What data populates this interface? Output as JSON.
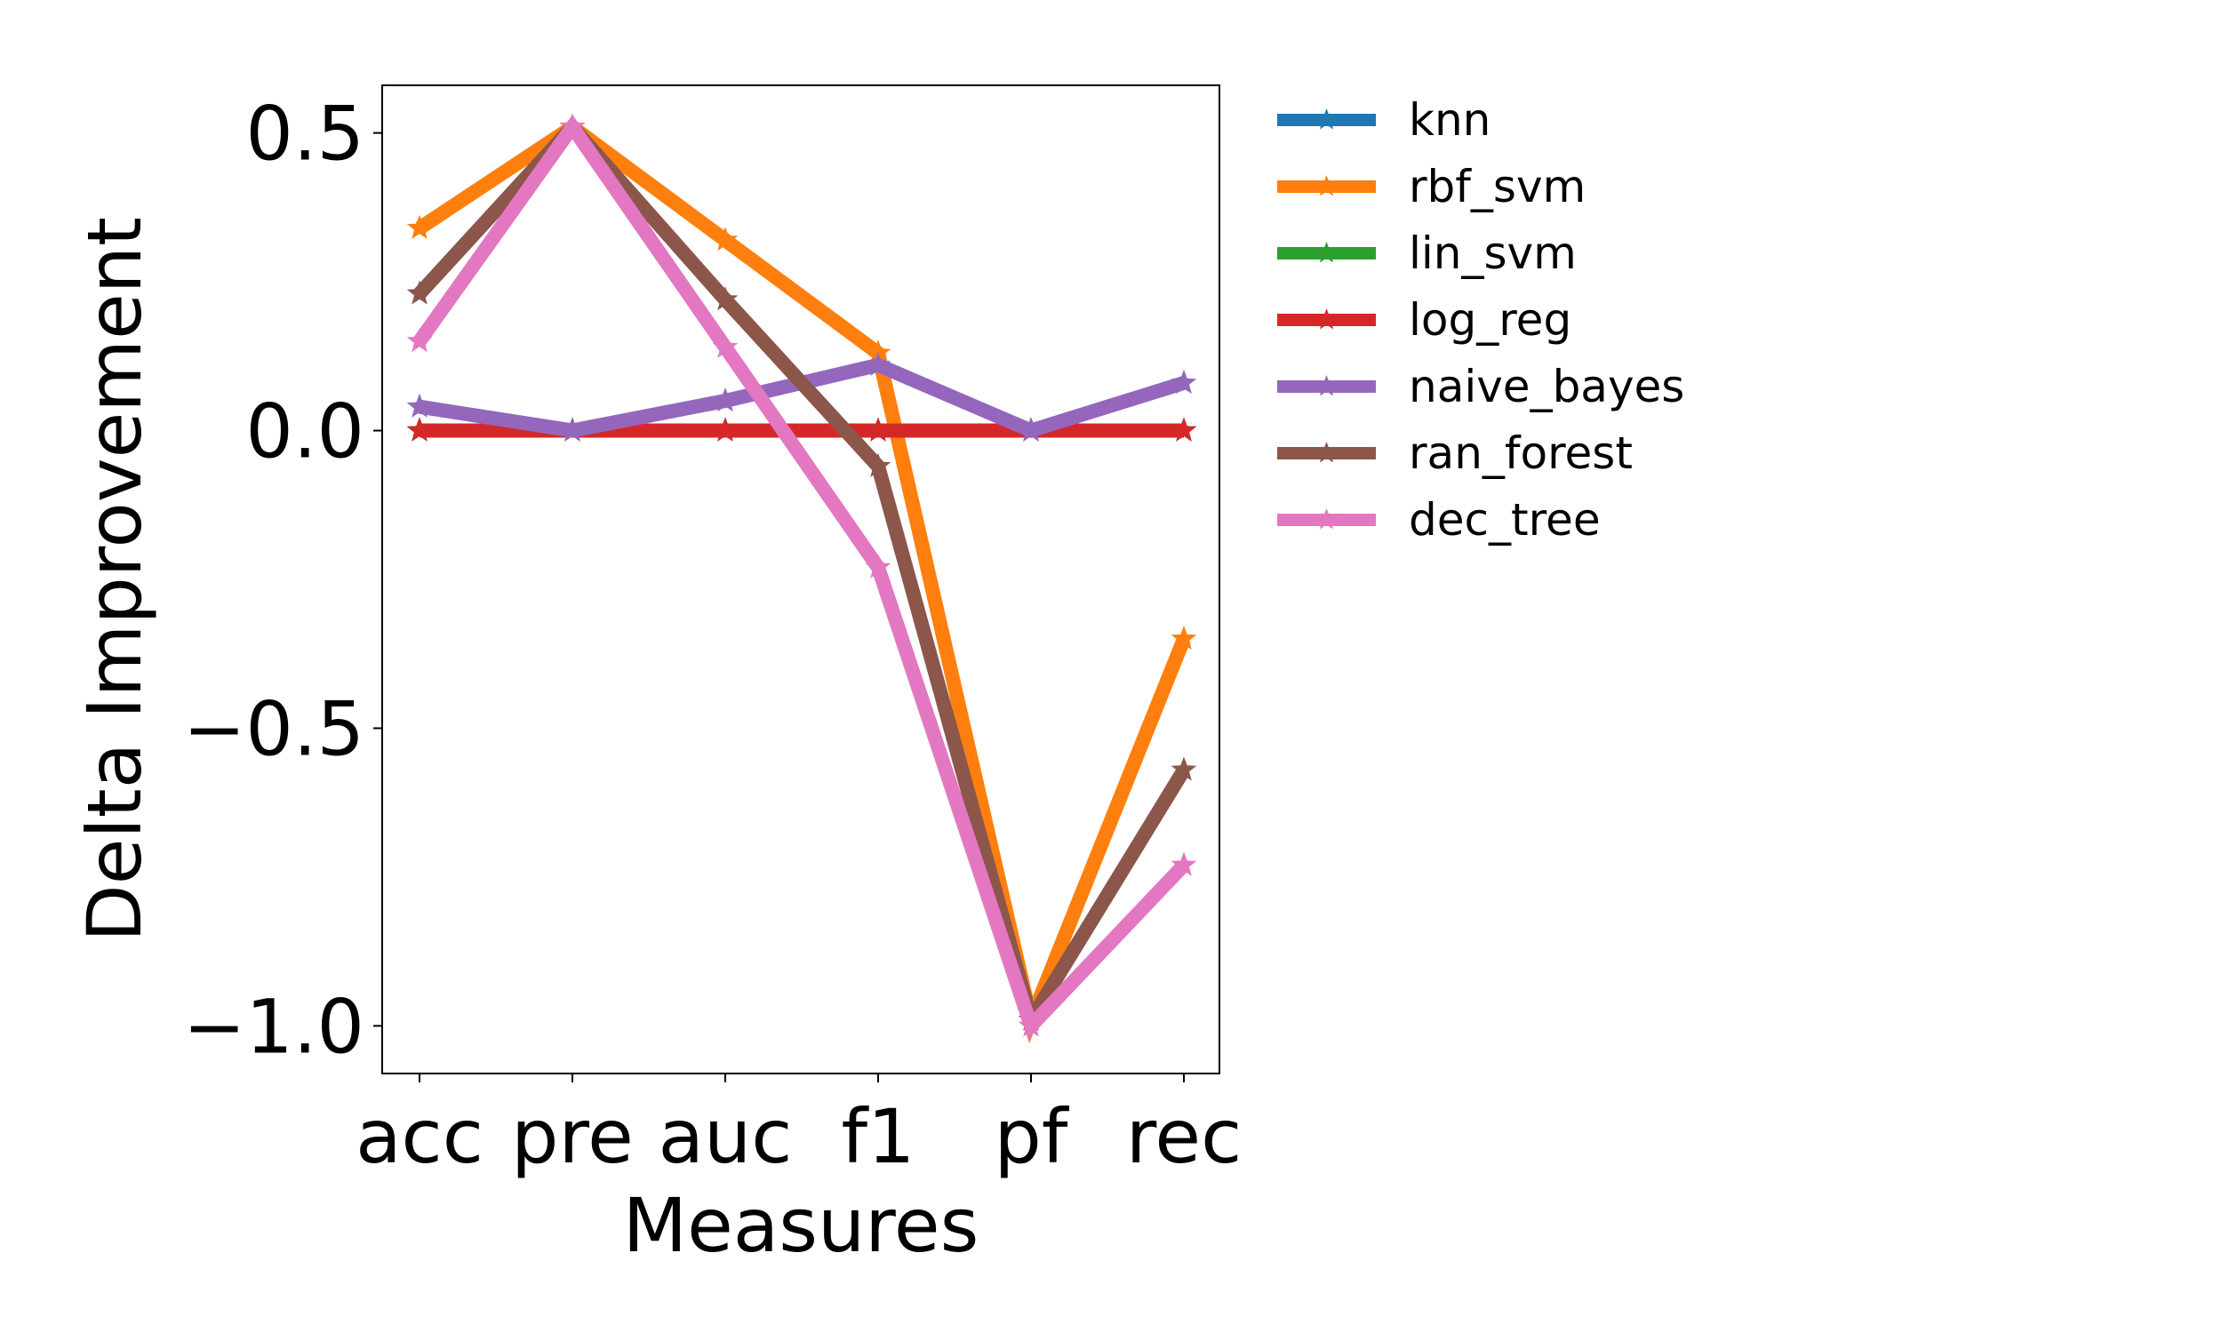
{
  "chart_data": {
    "type": "line",
    "title": "",
    "xlabel": "Measures",
    "ylabel": "Delta Improvement",
    "categories": [
      "acc",
      "pre",
      "auc",
      "f1",
      "pf",
      "rec"
    ],
    "ylim": [
      -1.08,
      0.58
    ],
    "yticks": [
      {
        "value": 0.5,
        "label": "0.5"
      },
      {
        "value": 0.0,
        "label": "0.0"
      },
      {
        "value": -0.5,
        "label": "−0.5"
      },
      {
        "value": -1.0,
        "label": "−1.0"
      }
    ],
    "grid": false,
    "legend_position": "outside-right-top",
    "marker": "star",
    "series": [
      {
        "name": "knn",
        "color": "#1f77b4",
        "values": [
          0,
          0,
          0,
          0,
          0,
          0
        ]
      },
      {
        "name": "rbf_svm",
        "color": "#ff7f0e",
        "values": [
          0.34,
          0.51,
          0.32,
          0.13,
          -0.99,
          -0.35
        ]
      },
      {
        "name": "lin_svm",
        "color": "#2ca02c",
        "values": [
          0,
          0,
          0,
          0,
          0,
          0
        ]
      },
      {
        "name": "log_reg",
        "color": "#d62728",
        "values": [
          0,
          0,
          0,
          0,
          0,
          0
        ]
      },
      {
        "name": "naive_bayes",
        "color": "#9467bd",
        "values": [
          0.04,
          0.0,
          0.05,
          0.11,
          0.0,
          0.08
        ]
      },
      {
        "name": "ran_forest",
        "color": "#8c564b",
        "values": [
          0.23,
          0.51,
          0.22,
          -0.06,
          -0.99,
          -0.57
        ]
      },
      {
        "name": "dec_tree",
        "color": "#e377c2",
        "values": [
          0.15,
          0.51,
          0.14,
          -0.23,
          -1.0,
          -0.73
        ]
      }
    ]
  }
}
